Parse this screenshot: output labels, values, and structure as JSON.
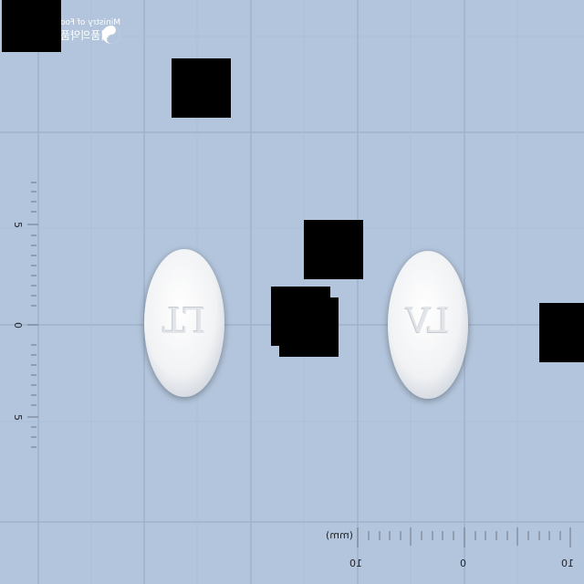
{
  "logo": {
    "text_line1": "Ministry of Foo",
    "text_line2": "식품의약품"
  },
  "ruler_vertical": {
    "labels": [
      "5",
      "0",
      "5"
    ]
  },
  "ruler_horizontal": {
    "unit": "(mm)",
    "labels": [
      "10",
      "0",
      "10"
    ]
  },
  "tablets": [
    {
      "imprint": "LT"
    },
    {
      "imprint": "LV"
    }
  ],
  "colors": {
    "background": "#b3c5dc",
    "grid": "#9fb2cc",
    "tablet": "#f4f5f6",
    "redaction": "#000000"
  }
}
